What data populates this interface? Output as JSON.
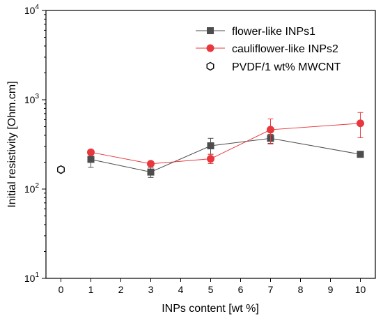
{
  "chart_data": {
    "type": "scatter",
    "xlabel": "INPs content [wt %]",
    "ylabel": "Initial resistivity [Ohm.cm]",
    "xlim": [
      -0.5,
      10.5
    ],
    "ylim": [
      10,
      10000
    ],
    "yscale": "log",
    "xticks": [
      0,
      1,
      2,
      3,
      4,
      5,
      6,
      7,
      8,
      9,
      10
    ],
    "yticks": [
      {
        "value": 10,
        "base": "10",
        "exp": "1"
      },
      {
        "value": 100,
        "base": "10",
        "exp": "2"
      },
      {
        "value": 1000,
        "base": "10",
        "exp": "3"
      },
      {
        "value": 10000,
        "base": "10",
        "exp": "4"
      }
    ],
    "grid": false,
    "legend_position": "top-right",
    "series": [
      {
        "name": "flower-like INPs1",
        "color": "#4d4d4d",
        "marker": "square",
        "x": [
          1,
          3,
          5,
          7,
          10
        ],
        "y": [
          215,
          155,
          305,
          370,
          245
        ],
        "err_low": [
          175,
          135,
          245,
          325,
          null
        ],
        "err_high": [
          245,
          175,
          370,
          410,
          null
        ]
      },
      {
        "name": "cauliflower-like INPs2",
        "color": "#e8383d",
        "marker": "circle",
        "x": [
          1,
          3,
          5,
          7,
          10
        ],
        "y": [
          258,
          192,
          218,
          462,
          545
        ],
        "err_low": [
          245,
          185,
          193,
          320,
          375
        ],
        "err_high": [
          275,
          200,
          245,
          610,
          720
        ]
      },
      {
        "name": "PVDF/1 wt% MWCNT",
        "color": "#000000",
        "marker": "hexagon-open",
        "x": [
          0
        ],
        "y": [
          165
        ],
        "err_low": [
          155
        ],
        "err_high": [
          178
        ]
      }
    ]
  }
}
